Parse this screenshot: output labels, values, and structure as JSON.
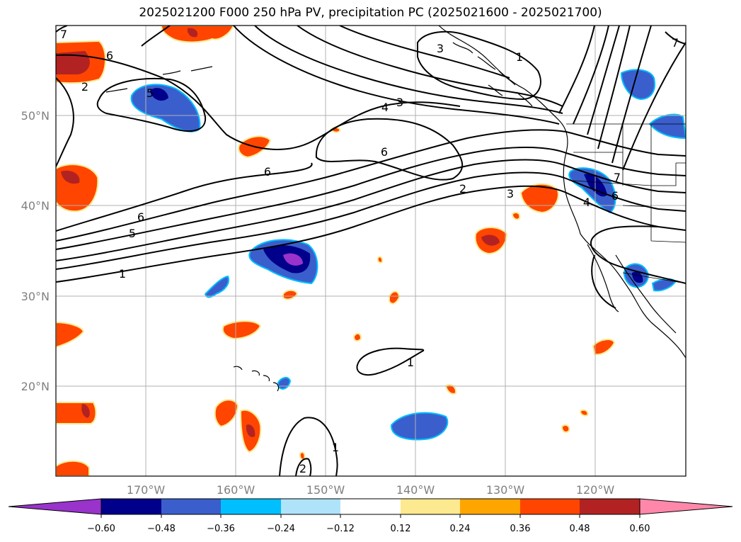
{
  "title": "2025021200 F000 250 hPa PV, precipitation PC (2025021600 - 2025021700)",
  "map": {
    "lon_ticks": [
      "170°W",
      "160°W",
      "150°W",
      "140°W",
      "130°W",
      "120°W"
    ],
    "lat_ticks": [
      "50°N",
      "40°N",
      "30°N",
      "20°N"
    ],
    "pv_contour_labels": [
      "1",
      "2",
      "3",
      "4",
      "5",
      "6",
      "7"
    ],
    "contour_color": "#000000",
    "land_color": "#ffffff",
    "grid_color": "#b0b0b0"
  },
  "colorbar": {
    "ticks": [
      "−0.60",
      "−0.48",
      "−0.36",
      "−0.24",
      "−0.12",
      "0.12",
      "0.24",
      "0.36",
      "0.48",
      "0.60"
    ],
    "colors": [
      "#9933cc",
      "#00008b",
      "#3a5fcd",
      "#00bfff",
      "#aee3fa",
      "#ffffff",
      "#fde98f",
      "#ffa500",
      "#ff4500",
      "#b22222",
      "#ff88aa"
    ],
    "extend": "both"
  }
}
